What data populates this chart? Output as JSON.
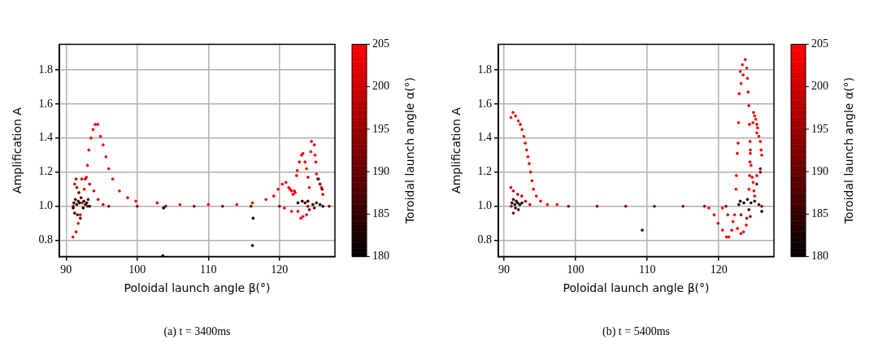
{
  "chart_data": [
    {
      "type": "scatter",
      "title": "(a) t = 3400ms",
      "xlabel": "Poloidal launch angle β(°)",
      "ylabel": "Amplification A",
      "clabel": "Toroidal launch angle α(°)",
      "x": [
        90.95,
        91.4,
        91.7,
        92.0,
        92.25,
        92.55,
        92.86,
        93.0,
        93.2,
        93.5,
        93.8,
        94.08,
        94.46,
        94.84,
        95.2,
        95.6,
        95.98,
        96.55,
        97.5,
        98.65,
        99.8,
        102.8,
        106,
        110,
        114,
        116.2,
        118.1,
        119.2,
        119.8,
        120.4,
        120.9,
        121.3,
        121.5,
        121.7,
        122.1,
        122.2,
        121.9,
        122.4,
        122.5,
        122.8,
        123.1,
        123.3,
        123.6,
        123.8,
        124.0,
        124.2,
        124.4,
        124.5,
        124.9,
        125.0,
        125.1,
        125.2,
        125.5,
        125.9,
        126.1,
        120.7,
        121.7,
        122.6,
        123.0,
        123.3,
        123.8,
        91.2,
        91.4,
        92.2,
        92.7,
        93.3,
        93.9,
        94.5,
        95.2,
        91,
        93,
        96,
        100,
        104,
        108,
        112,
        116,
        120,
        124,
        127,
        91.1,
        91.3,
        91.5,
        91.7,
        91.9,
        92.1,
        92.4,
        92.5,
        92.7,
        92.9,
        93.1,
        93.3,
        91.0,
        91.2,
        91.6,
        92.0,
        91.8,
        91.5,
        103.7,
        103.6,
        116.3,
        116.2,
        125.4,
        125.7,
        126.0,
        122.6,
        123.2,
        124.0,
        124.7,
        125.7,
        126.1,
        124.2,
        124.9,
        123.6,
        125.2
      ],
      "values": [
        0.82,
        0.85,
        0.9,
        0.95,
        1.02,
        1.1,
        1.17,
        1.24,
        1.33,
        1.4,
        1.45,
        1.48,
        1.48,
        1.41,
        1.36,
        1.29,
        1.22,
        1.16,
        1.09,
        1.05,
        1.03,
        1.02,
        1.01,
        1.01,
        1.01,
        1.02,
        1.04,
        1.06,
        1.1,
        1.13,
        1.14,
        1.11,
        1.1,
        1.09,
        1.09,
        1.08,
        1.07,
        1.18,
        1.21,
        1.26,
        1.3,
        1.31,
        1.26,
        1.22,
        1.17,
        1.11,
        1.32,
        1.38,
        1.36,
        1.3,
        1.26,
        1.19,
        1.16,
        1.11,
        1.07,
        0.99,
        0.97,
        0.97,
        0.93,
        0.94,
        0.95,
        1.13,
        1.16,
        1.16,
        1.16,
        1.13,
        1.09,
        1.04,
        1.01,
        1,
        1,
        1,
        1,
        1,
        1,
        1,
        1,
        1,
        1,
        1,
        1.02,
        1.04,
        1.01,
        1.03,
        1.02,
        1.05,
        0.99,
        1.03,
        1.01,
        1.02,
        1.04,
        1,
        0.99,
        0.96,
        0.95,
        0.93,
        1.08,
        1.11,
        0.99,
        0.71,
        0.93,
        0.77,
        1.16,
        1.13,
        1.1,
        1.02,
        1.03,
        1.03,
        1.01,
        1.01,
        1,
        0.98,
        0.99,
        1.02,
        1.02
      ],
      "cvalues": [
        205,
        205,
        205,
        205,
        205,
        205,
        205,
        205,
        205,
        205,
        205,
        205,
        205,
        205,
        205,
        205,
        205,
        205,
        205,
        205,
        205,
        205,
        205,
        205,
        205,
        205,
        205,
        205,
        205,
        205,
        205,
        205,
        205,
        205,
        205,
        205,
        205,
        205,
        205,
        205,
        205,
        205,
        205,
        205,
        205,
        205,
        205,
        205,
        205,
        205,
        205,
        205,
        205,
        205,
        205,
        205,
        205,
        205,
        205,
        205,
        205,
        200,
        200,
        200,
        200,
        200,
        200,
        200,
        200,
        195,
        195,
        195,
        195,
        195,
        195,
        195,
        195,
        195,
        195,
        195,
        182,
        185,
        180,
        188,
        183,
        186,
        181,
        184,
        187,
        182,
        189,
        181,
        183,
        190,
        192,
        190,
        193,
        194,
        180,
        180,
        180,
        180,
        193,
        192,
        191,
        182,
        181,
        183,
        180,
        182,
        184,
        190,
        188,
        185,
        186
      ],
      "xlim": [
        89.05,
        127.8
      ],
      "ylim": [
        0.705,
        1.95
      ],
      "xticks": [
        90,
        100,
        110,
        120
      ],
      "yticks": [
        0.8,
        {
          "value": 1,
          "label": "1.0"
        },
        1.2,
        1.4,
        1.6,
        1.8
      ],
      "clim": [
        180,
        205
      ],
      "cticks": [
        180,
        185,
        190,
        195,
        200,
        205
      ],
      "grid": true,
      "marker": "circle"
    },
    {
      "type": "scatter",
      "title": "(b) t = 5400ms",
      "xlabel": "Poloidal launch angle β(°)",
      "ylabel": "Amplification A",
      "clabel": "Toroidal launch angle α(°)",
      "x": [
        90.95,
        91.25,
        91.6,
        92.0,
        92.27,
        92.5,
        92.76,
        92.95,
        93.15,
        93.33,
        93.5,
        93.7,
        93.9,
        94.1,
        94.5,
        95.1,
        96.05,
        97.4,
        118.6,
        119.35,
        119.9,
        120.5,
        121.06,
        121.4,
        121.8,
        121.97,
        122.2,
        120.5,
        121.25,
        122.6,
        123.07,
        123.45,
        123.83,
        123.7,
        123.3,
        123.9,
        123.0,
        123.4,
        124.0,
        123.1,
        122.84,
        124.1,
        124.2,
        124.85,
        125.0,
        125.15,
        124.77,
        124.28,
        125.3,
        125.4,
        122.76,
        125.3,
        125.6,
        122.7,
        124.35,
        125.8,
        122.58,
        124.4,
        124.4,
        125.9,
        126.0,
        124.35,
        124.5,
        122.46,
        124.3,
        124.66,
        125.3,
        124.8,
        122.4,
        124.2,
        124.9,
        125.0,
        90.95,
        91.3,
        91.9,
        92.47,
        93.0,
        93.6,
        91,
        99,
        103,
        107,
        111,
        115,
        118,
        121,
        126,
        123.1,
        123.9,
        124.4,
        91.1,
        91.3,
        91.5,
        91.7,
        91.9,
        92.2,
        92.5,
        91.3,
        91.6,
        92.0,
        109.3,
        125.3,
        125.8,
        125.8,
        123.0,
        123.5,
        124.0,
        124.5,
        125.0,
        125.6,
        126.0,
        124.2,
        122.8
      ],
      "values": [
        1.52,
        1.55,
        1.53,
        1.5,
        1.48,
        1.45,
        1.41,
        1.37,
        1.33,
        1.29,
        1.25,
        1.2,
        1.15,
        1.1,
        1.06,
        1.03,
        1.01,
        1.01,
        0.99,
        0.95,
        0.9,
        0.86,
        0.82,
        0.82,
        0.86,
        0.91,
        0.95,
        0.99,
        0.95,
        0.87,
        0.84,
        0.85,
        0.89,
        1.86,
        1.83,
        1.81,
        1.79,
        1.77,
        1.75,
        1.72,
        1.66,
        1.67,
        1.59,
        1.55,
        1.53,
        1.51,
        1.49,
        1.48,
        1.48,
        1.46,
        1.49,
        1.43,
        1.41,
        1.37,
        1.38,
        1.38,
        1.31,
        1.33,
        1.31,
        1.33,
        1.3,
        1.26,
        1.24,
        1.18,
        1.18,
        1.17,
        1.18,
        1.14,
        1.1,
        1.1,
        1.09,
        1.06,
        1.11,
        1.09,
        1.07,
        1.06,
        1.03,
        1.01,
        1,
        1,
        1,
        1,
        1,
        1,
        1,
        1,
        1,
        0.95,
        0.93,
        0.94,
        1.02,
        1.04,
        1.01,
        1.03,
        1.02,
        1.01,
        1.02,
        0.96,
        0.99,
        0.98,
        0.86,
        1.13,
        1.2,
        1.22,
        1.03,
        1.02,
        1.04,
        1.02,
        1.03,
        1.01,
        0.97,
        0.98,
        1.01
      ],
      "cvalues": [
        205,
        205,
        205,
        205,
        205,
        205,
        205,
        205,
        205,
        205,
        205,
        205,
        205,
        205,
        205,
        205,
        205,
        205,
        205,
        205,
        205,
        205,
        205,
        205,
        205,
        205,
        205,
        205,
        205,
        205,
        205,
        205,
        205,
        205,
        205,
        205,
        205,
        205,
        205,
        205,
        205,
        205,
        205,
        205,
        205,
        205,
        205,
        205,
        205,
        205,
        205,
        205,
        205,
        205,
        205,
        205,
        205,
        205,
        205,
        205,
        205,
        205,
        205,
        205,
        205,
        205,
        205,
        205,
        205,
        205,
        205,
        205,
        200,
        200,
        200,
        200,
        200,
        200,
        195,
        195,
        195,
        195,
        195,
        195,
        195,
        195,
        195,
        195,
        195,
        195,
        182,
        185,
        180,
        187,
        183,
        181,
        184,
        190,
        186,
        188,
        190,
        193,
        194,
        192,
        180,
        182,
        181,
        184,
        183,
        186,
        185,
        189,
        183
      ],
      "xlim": [
        89.2,
        127.7
      ],
      "ylim": [
        0.705,
        1.95
      ],
      "xticks": [
        90,
        100,
        110,
        120
      ],
      "yticks": [
        0.8,
        {
          "value": 1,
          "label": "1.0"
        },
        1.2,
        1.4,
        1.6,
        1.8
      ],
      "clim": [
        180,
        205
      ],
      "cticks": [
        180,
        185,
        190,
        195,
        200,
        205
      ],
      "grid": true,
      "marker": "circle"
    }
  ]
}
